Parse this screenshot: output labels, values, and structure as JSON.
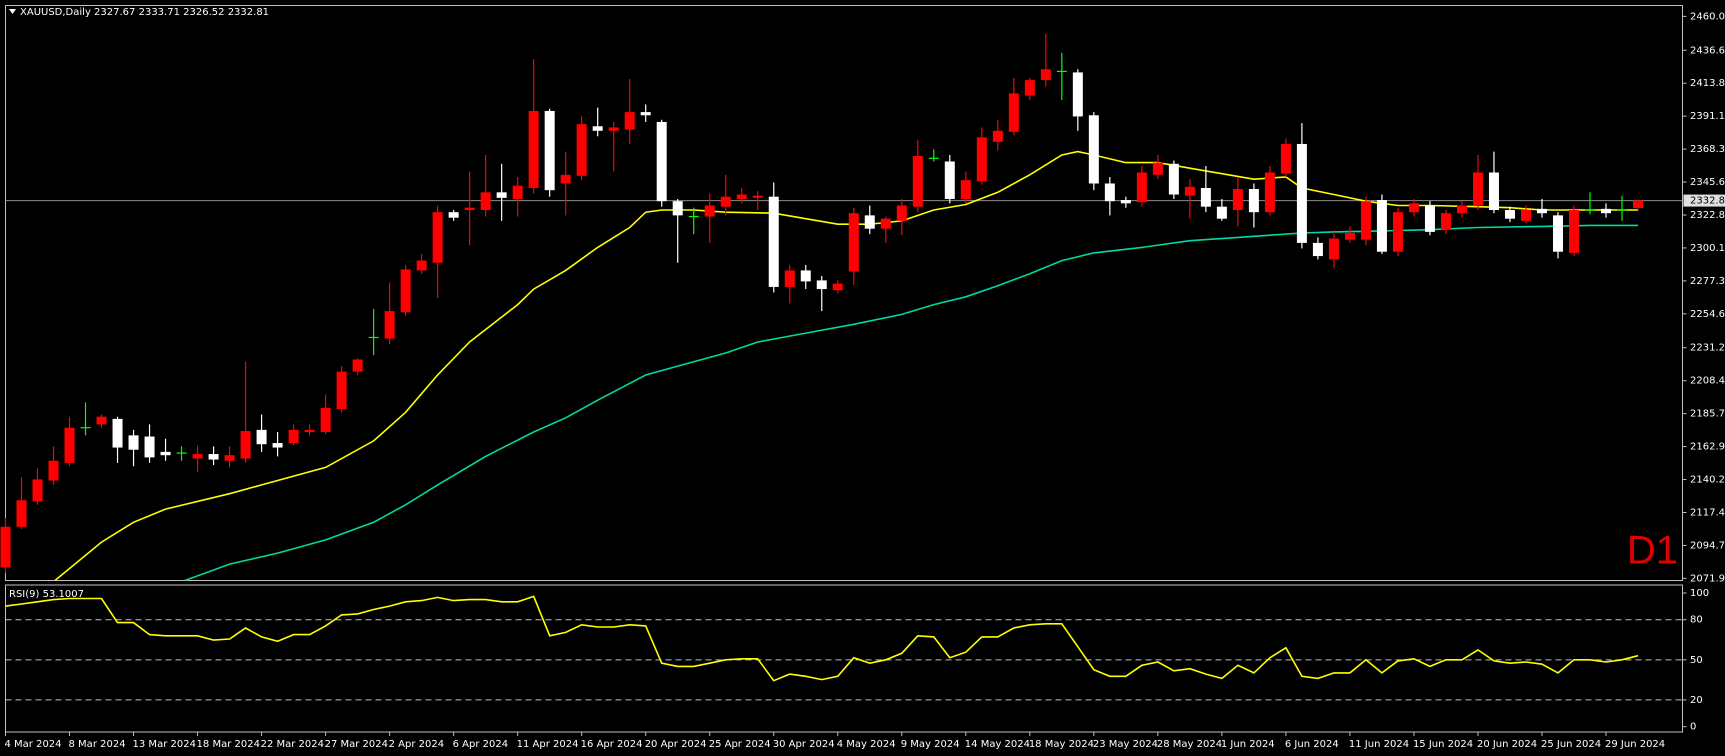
{
  "chart_data": [
    {
      "type": "candlestick",
      "title": "XAUUSD,Daily",
      "categories": [
        "4 Mar 2024",
        null,
        null,
        null,
        "8 Mar 2024",
        null,
        null,
        null,
        "13 Mar 2024",
        null,
        null,
        null,
        "18 Mar 2024",
        null,
        null,
        null,
        "22 Mar 2024",
        null,
        null,
        null,
        "27 Mar 2024",
        null,
        null,
        null,
        "2 Apr 2024",
        null,
        null,
        null,
        "6 Apr 2024",
        null,
        null,
        null,
        "11 Apr 2024",
        null,
        null,
        null,
        "16 Apr 2024",
        null,
        null,
        null,
        "20 Apr 2024",
        null,
        null,
        null,
        "25 Apr 2024",
        null,
        null,
        null,
        "30 Apr 2024",
        null,
        null,
        null,
        "4 May 2024",
        null,
        null,
        null,
        "9 May 2024",
        null,
        null,
        null,
        "14 May 2024",
        null,
        null,
        null,
        "18 May 2024",
        null,
        null,
        null,
        "23 May 2024",
        null,
        null,
        null,
        "28 May 2024",
        null,
        null,
        null,
        "1 Jun 2024",
        null,
        null,
        null,
        "6 Jun 2024",
        null,
        null,
        null,
        "11 Jun 2024",
        null,
        null,
        null,
        "15 Jun 2024",
        null,
        null,
        null,
        "20 Jun 2024",
        null,
        null,
        null,
        "25 Jun 2024",
        null,
        null,
        null,
        "29 Jun 2024",
        null,
        null
      ],
      "ohlc": [
        [
          2079.5,
          2113.7,
          2075.7,
          2107.6
        ],
        [
          2107.6,
          2141.8,
          2106.1,
          2125.9
        ],
        [
          2125.1,
          2147.9,
          2122.8,
          2140.3
        ],
        [
          2139.5,
          2163.1,
          2136.5,
          2153.2
        ],
        [
          2151.7,
          2183.6,
          2149.4,
          2176.0
        ],
        [
          2176.0,
          2193.5,
          2170.7,
          2176.0
        ],
        [
          2178.3,
          2185.1,
          2176.0,
          2183.6
        ],
        [
          2182.1,
          2183.6,
          2151.7,
          2162.3
        ],
        [
          2170.7,
          2174.5,
          2149.4,
          2160.8
        ],
        [
          2169.9,
          2178.3,
          2151.7,
          2155.5
        ],
        [
          2159.3,
          2168.4,
          2153.2,
          2157.0
        ],
        [
          2158.5,
          2163.1,
          2153.2,
          2158.5
        ],
        [
          2154.7,
          2163.8,
          2145.6,
          2157.8
        ],
        [
          2157.8,
          2163.1,
          2150.2,
          2154.0
        ],
        [
          2153.2,
          2163.1,
          2148.6,
          2157.0
        ],
        [
          2154.7,
          2221.6,
          2151.7,
          2173.7
        ],
        [
          2174.5,
          2185.1,
          2159.3,
          2164.6
        ],
        [
          2165.4,
          2173.0,
          2156.2,
          2162.3
        ],
        [
          2165.4,
          2178.3,
          2163.8,
          2174.5
        ],
        [
          2173.0,
          2178.3,
          2170.7,
          2174.5
        ],
        [
          2173.0,
          2198.8,
          2171.4,
          2189.7
        ],
        [
          2188.9,
          2218.5,
          2186.6,
          2214.7
        ],
        [
          2214.7,
          2223.8,
          2212.4,
          2223.1
        ],
        [
          2238.3,
          2258.0,
          2226.1,
          2238.3
        ],
        [
          2237.5,
          2276.2,
          2233.7,
          2256.5
        ],
        [
          2255.7,
          2288.4,
          2253.4,
          2285.3
        ],
        [
          2284.6,
          2296.0,
          2282.3,
          2291.4
        ],
        [
          2289.9,
          2329.4,
          2265.6,
          2324.8
        ],
        [
          2324.8,
          2326.3,
          2318.8,
          2321.0
        ],
        [
          2326.3,
          2352.9,
          2302.0,
          2327.9
        ],
        [
          2326.3,
          2364.3,
          2321.8,
          2338.5
        ],
        [
          2338.5,
          2358.2,
          2318.8,
          2334.7
        ],
        [
          2333.9,
          2349.1,
          2321.8,
          2343.1
        ],
        [
          2341.5,
          2430.4,
          2337.7,
          2394.7
        ],
        [
          2394.7,
          2396.2,
          2335.5,
          2340.0
        ],
        [
          2344.6,
          2366.6,
          2322.6,
          2350.6
        ],
        [
          2349.9,
          2390.9,
          2346.9,
          2385.6
        ],
        [
          2384.1,
          2397.0,
          2377.2,
          2381.0
        ],
        [
          2381.0,
          2387.1,
          2352.9,
          2383.3
        ],
        [
          2381.8,
          2416.7,
          2371.9,
          2393.9
        ],
        [
          2393.9,
          2399.2,
          2387.1,
          2391.7
        ],
        [
          2387.1,
          2388.6,
          2328.6,
          2332.4
        ],
        [
          2332.4,
          2333.9,
          2289.9,
          2322.6
        ],
        [
          2321.8,
          2327.9,
          2309.6,
          2321.8
        ],
        [
          2321.8,
          2337.7,
          2303.6,
          2329.4
        ],
        [
          2328.6,
          2350.6,
          2322.6,
          2335.5
        ],
        [
          2333.9,
          2341.5,
          2330.9,
          2337.0
        ],
        [
          2334.7,
          2339.3,
          2326.3,
          2336.2
        ],
        [
          2335.5,
          2345.3,
          2269.4,
          2273.2
        ],
        [
          2273.2,
          2288.4,
          2261.8,
          2284.6
        ],
        [
          2284.6,
          2288.4,
          2271.7,
          2277.0
        ],
        [
          2277.7,
          2280.8,
          2256.5,
          2271.7
        ],
        [
          2270.9,
          2277.7,
          2268.6,
          2275.5
        ],
        [
          2283.8,
          2327.9,
          2274.7,
          2324.1
        ],
        [
          2322.6,
          2329.4,
          2309.6,
          2313.4
        ],
        [
          2313.4,
          2321.8,
          2303.6,
          2320.3
        ],
        [
          2318.8,
          2333.9,
          2308.9,
          2329.4
        ],
        [
          2328.6,
          2374.9,
          2324.8,
          2363.6
        ],
        [
          2362.0,
          2368.1,
          2359.8,
          2362.0
        ],
        [
          2359.8,
          2364.3,
          2330.9,
          2333.9
        ],
        [
          2333.9,
          2352.9,
          2330.9,
          2346.9
        ],
        [
          2346.1,
          2383.3,
          2343.8,
          2376.5
        ],
        [
          2373.4,
          2388.6,
          2367.4,
          2381.0
        ],
        [
          2380.3,
          2417.5,
          2378.0,
          2406.8
        ],
        [
          2405.3,
          2417.5,
          2402.3,
          2416.0
        ],
        [
          2416.0,
          2447.9,
          2411.4,
          2423.5
        ],
        [
          2422.0,
          2434.9,
          2402.3,
          2422.0
        ],
        [
          2421.3,
          2423.5,
          2381.0,
          2390.9
        ],
        [
          2391.7,
          2393.9,
          2340.0,
          2344.6
        ],
        [
          2344.6,
          2349.1,
          2322.6,
          2332.4
        ],
        [
          2333.2,
          2335.5,
          2327.9,
          2330.9
        ],
        [
          2331.7,
          2356.7,
          2328.6,
          2352.2
        ],
        [
          2350.6,
          2364.3,
          2347.6,
          2359.0
        ],
        [
          2358.2,
          2360.5,
          2333.9,
          2337.0
        ],
        [
          2336.2,
          2347.6,
          2320.3,
          2342.3
        ],
        [
          2341.5,
          2356.7,
          2324.8,
          2328.6
        ],
        [
          2328.6,
          2333.9,
          2318.8,
          2320.3
        ],
        [
          2326.3,
          2349.1,
          2315.0,
          2340.8
        ],
        [
          2340.8,
          2344.6,
          2314.2,
          2324.8
        ],
        [
          2324.8,
          2356.7,
          2322.6,
          2352.2
        ],
        [
          2351.4,
          2375.7,
          2349.1,
          2371.9
        ],
        [
          2371.9,
          2386.3,
          2299.8,
          2303.6
        ],
        [
          2303.6,
          2307.4,
          2292.2,
          2294.5
        ],
        [
          2292.2,
          2311.2,
          2286.1,
          2306.6
        ],
        [
          2305.8,
          2315.0,
          2303.6,
          2310.4
        ],
        [
          2305.8,
          2335.5,
          2302.0,
          2332.4
        ],
        [
          2333.2,
          2337.0,
          2296.0,
          2297.5
        ],
        [
          2297.5,
          2327.9,
          2294.5,
          2324.8
        ],
        [
          2324.8,
          2333.9,
          2321.8,
          2330.9
        ],
        [
          2329.4,
          2332.4,
          2308.9,
          2311.2
        ],
        [
          2312.7,
          2326.3,
          2309.6,
          2324.1
        ],
        [
          2324.1,
          2332.4,
          2321.0,
          2329.4
        ],
        [
          2329.4,
          2364.3,
          2326.3,
          2352.2
        ],
        [
          2352.2,
          2366.6,
          2324.1,
          2326.3
        ],
        [
          2326.3,
          2328.6,
          2318.0,
          2320.3
        ],
        [
          2318.8,
          2329.4,
          2317.2,
          2326.3
        ],
        [
          2327.1,
          2333.9,
          2321.0,
          2324.1
        ],
        [
          2322.6,
          2324.8,
          2292.9,
          2297.5
        ],
        [
          2296.7,
          2329.4,
          2294.5,
          2326.3
        ],
        [
          2326.3,
          2338.5,
          2323.3,
          2326.3
        ],
        [
          2327.1,
          2330.9,
          2321.0,
          2324.1
        ],
        [
          2326.3,
          2336.2,
          2318.8,
          2326.3
        ],
        [
          2327.67,
          2333.71,
          2326.52,
          2332.81
        ]
      ],
      "up_color": "#ff0000",
      "down_color": "#ffffff",
      "doji_color": "#00ff00",
      "price_line_color": "#8c8c8c",
      "series": [
        {
          "color": "#ffff00",
          "x": [
            3,
            6,
            8,
            10,
            14,
            16,
            20,
            23,
            25,
            27,
            29,
            32,
            33,
            35,
            37,
            39,
            40,
            41,
            43,
            45,
            48,
            50,
            52,
            54,
            56,
            58,
            60,
            62,
            64,
            66,
            67,
            68,
            70,
            72,
            74,
            76,
            78,
            80,
            81,
            83,
            85,
            87,
            89,
            92,
            94,
            96,
            98,
            100,
            102
          ],
          "values": [
            2069.7,
            2097.0,
            2110.7,
            2119.8,
            2130.4,
            2136.5,
            2148.6,
            2166.9,
            2186.6,
            2212.4,
            2235.2,
            2261.0,
            2271.7,
            2284.6,
            2300.5,
            2314.2,
            2324.8,
            2326.3,
            2326.3,
            2324.8,
            2324.1,
            2320.3,
            2316.5,
            2316.5,
            2318.8,
            2326.3,
            2330.1,
            2338.5,
            2350.6,
            2364.3,
            2366.6,
            2364.3,
            2359.0,
            2359.0,
            2355.2,
            2351.4,
            2347.6,
            2349.1,
            2341.5,
            2337.0,
            2332.4,
            2329.4,
            2329.4,
            2328.6,
            2327.9,
            2326.3,
            2326.3,
            2326.3,
            2326.3
          ]
        },
        {
          "color": "#00d9a3",
          "x": [
            11,
            14,
            17,
            20,
            23,
            25,
            27,
            30,
            33,
            35,
            37,
            40,
            42,
            45,
            47,
            50,
            53,
            56,
            58,
            60,
            62,
            64,
            66,
            68,
            71,
            74,
            77,
            79,
            81,
            83,
            86,
            89,
            92,
            96,
            99,
            102
          ],
          "values": [
            2069.7,
            2081.8,
            2089.4,
            2098.5,
            2110.7,
            2122.8,
            2136.5,
            2156.2,
            2173.0,
            2182.8,
            2195.0,
            2212.4,
            2218.5,
            2227.6,
            2235.2,
            2241.3,
            2247.4,
            2254.2,
            2261.0,
            2266.4,
            2274.0,
            2282.3,
            2291.4,
            2296.7,
            2300.5,
            2305.1,
            2307.4,
            2308.9,
            2310.4,
            2311.2,
            2311.9,
            2312.7,
            2314.2,
            2315.0,
            2315.7,
            2315.7
          ]
        }
      ],
      "ylim": [
        2070.5,
        2467.5
      ],
      "yticks": [
        {
          "value": 2460,
          "label": "2460.00"
        },
        {
          "value": 2436.6,
          "label": "2436.60"
        },
        {
          "value": 2413.85,
          "label": "2413.85"
        },
        {
          "value": 2391.1,
          "label": "2391.10"
        },
        {
          "value": 2368.35,
          "label": "2368.35"
        },
        {
          "value": 2345.6,
          "label": "2345.60"
        },
        {
          "value": 2322.85,
          "label": "2322.85"
        },
        {
          "value": 2300.1,
          "label": "2300.10"
        },
        {
          "value": 2277.35,
          "label": "2277.35"
        },
        {
          "value": 2254.6,
          "label": "2254.60"
        },
        {
          "value": 2231.2,
          "label": "2231.20"
        },
        {
          "value": 2208.45,
          "label": "2208.45"
        },
        {
          "value": 2185.7,
          "label": "2185.70"
        },
        {
          "value": 2162.95,
          "label": "2162.95"
        },
        {
          "value": 2140.2,
          "label": "2140.20"
        },
        {
          "value": 2117.45,
          "label": "2117.45"
        },
        {
          "value": 2094.7,
          "label": "2094.70"
        },
        {
          "value": 2071.95,
          "label": "2071.95"
        }
      ],
      "grid": false,
      "annotation": "D1"
    },
    {
      "type": "line",
      "title": "RSI(9)",
      "color": "#ffff00",
      "values": [
        90.2,
        91.8,
        93.4,
        95.1,
        95.9,
        95.9,
        95.9,
        77.9,
        77.9,
        68.9,
        68.0,
        68.0,
        68.0,
        64.8,
        65.6,
        73.8,
        67.2,
        63.9,
        68.9,
        68.9,
        75.4,
        83.6,
        84.4,
        87.7,
        90.2,
        93.4,
        94.3,
        96.7,
        94.3,
        95.1,
        95.1,
        93.4,
        93.4,
        97.5,
        68.0,
        70.5,
        76.2,
        74.6,
        74.6,
        76.2,
        75.4,
        47.5,
        45.1,
        45.1,
        47.5,
        50.0,
        50.8,
        50.8,
        34.4,
        39.3,
        37.7,
        35.2,
        37.7,
        51.6,
        47.5,
        50.0,
        54.9,
        68.0,
        67.2,
        51.6,
        55.7,
        67.2,
        67.2,
        73.8,
        76.2,
        77.0,
        77.0,
        59.8,
        42.6,
        37.7,
        37.7,
        45.9,
        48.4,
        41.8,
        43.4,
        39.3,
        36.1,
        45.9,
        40.2,
        51.6,
        59.0,
        37.7,
        36.1,
        40.2,
        40.2,
        50.0,
        40.2,
        49.2,
        50.8,
        45.1,
        50.0,
        50.0,
        57.4,
        49.2,
        47.5,
        48.4,
        46.7,
        40.2,
        50.0,
        50.0,
        48.4,
        50.0,
        53.1007
      ],
      "ylim": [
        -4,
        106
      ],
      "yticks": [
        100,
        80,
        50,
        20,
        0
      ],
      "levels": [
        80,
        50,
        20
      ]
    }
  ]
}
